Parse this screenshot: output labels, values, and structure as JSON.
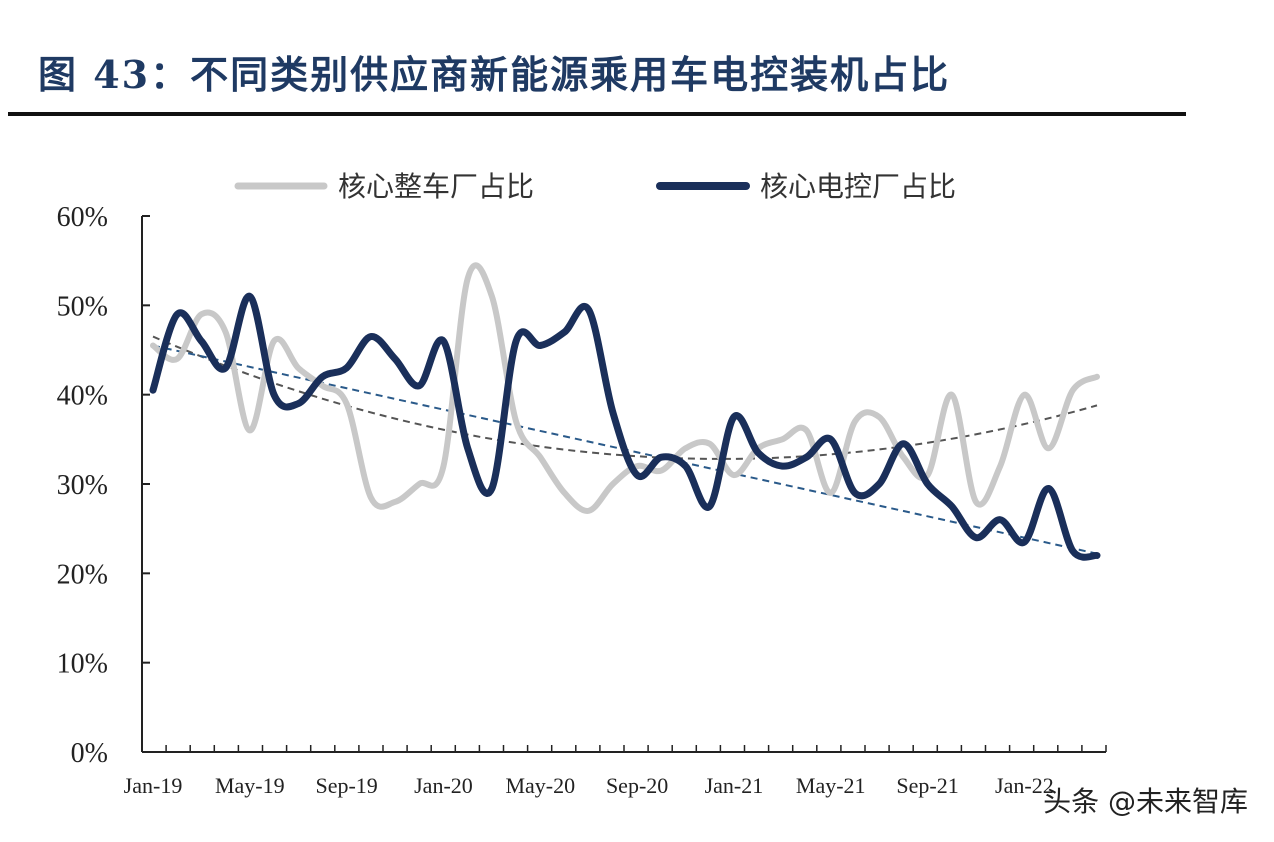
{
  "title": "图 43：不同类别供应商新能源乘用车电控装机占比",
  "watermark": "头条 @未来智库",
  "chart_data": {
    "type": "line",
    "title": "图 43：不同类别供应商新能源乘用车电控装机占比",
    "xlabel": "",
    "ylabel": "",
    "ylim": [
      0,
      60
    ],
    "y_ticks": [
      "0%",
      "10%",
      "20%",
      "30%",
      "40%",
      "50%",
      "60%"
    ],
    "x_tick_labels": [
      "Jan-19",
      "May-19",
      "Sep-19",
      "Jan-20",
      "May-20",
      "Sep-20",
      "Jan-21",
      "May-21",
      "Sep-21",
      "Jan-22"
    ],
    "x": [
      "Jan-19",
      "Feb-19",
      "Mar-19",
      "Apr-19",
      "May-19",
      "Jun-19",
      "Jul-19",
      "Aug-19",
      "Sep-19",
      "Oct-19",
      "Nov-19",
      "Dec-19",
      "Jan-20",
      "Feb-20",
      "Mar-20",
      "Apr-20",
      "May-20",
      "Jun-20",
      "Jul-20",
      "Aug-20",
      "Sep-20",
      "Oct-20",
      "Nov-20",
      "Dec-20",
      "Jan-21",
      "Feb-21",
      "Mar-21",
      "Apr-21",
      "May-21",
      "Jun-21",
      "Jul-21",
      "Aug-21",
      "Sep-21",
      "Oct-21",
      "Nov-21",
      "Dec-21",
      "Jan-22",
      "Feb-22",
      "Mar-22",
      "Apr-22"
    ],
    "legend_position": "top",
    "grid": false,
    "series": [
      {
        "name": "核心整车厂占比",
        "color": "#c8c8c8",
        "values": [
          45.5,
          44.0,
          49.0,
          47.0,
          36.0,
          46.0,
          43.0,
          41.0,
          39.0,
          28.5,
          28.0,
          30.0,
          32.0,
          53.0,
          51.0,
          37.0,
          33.0,
          29.0,
          27.0,
          30.0,
          32.0,
          31.5,
          34.0,
          34.5,
          31.0,
          34.0,
          35.0,
          36.0,
          29.0,
          37.0,
          37.5,
          33.0,
          31.0,
          40.0,
          28.0,
          32.0,
          40.0,
          34.0,
          40.5,
          42.0
        ]
      },
      {
        "name": "核心电控厂占比",
        "color": "#1a2f5a",
        "values": [
          40.5,
          49.0,
          46.0,
          43.0,
          51.0,
          40.0,
          39.0,
          42.0,
          43.0,
          46.5,
          44.0,
          41.0,
          46.0,
          34.0,
          29.5,
          46.0,
          45.5,
          47.0,
          49.5,
          38.0,
          31.0,
          33.0,
          32.0,
          27.5,
          37.5,
          33.5,
          32.0,
          33.0,
          35.0,
          29.0,
          30.0,
          34.5,
          30.0,
          27.5,
          24.0,
          26.0,
          23.5,
          29.5,
          22.5,
          22.0
        ]
      }
    ],
    "trendlines": [
      {
        "type": "polynomial",
        "style": "dashed",
        "color": "#555555",
        "values": [
          46.5,
          33.2,
          38.8
        ]
      },
      {
        "type": "linear",
        "style": "dashed",
        "color": "#2a5a8a",
        "values": [
          45.5,
          22.2
        ]
      }
    ]
  }
}
